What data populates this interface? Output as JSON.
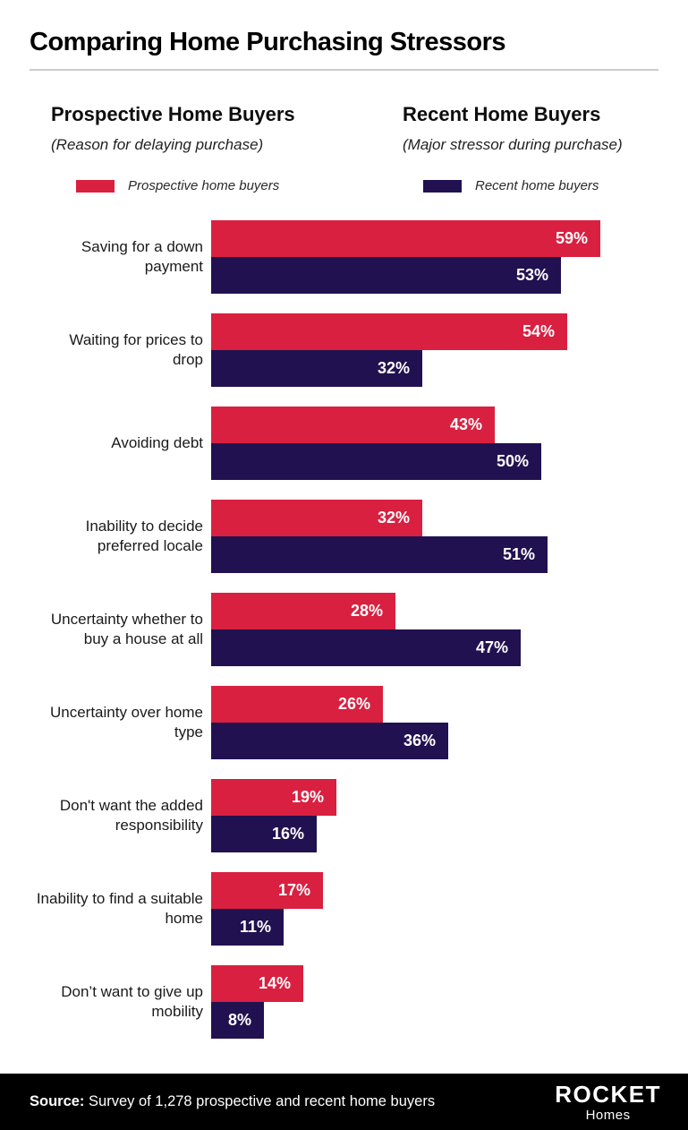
{
  "title": "Comparing Home Purchasing Stressors",
  "columns": {
    "left": {
      "heading": "Prospective Home Buyers",
      "subheading": "(Reason for delaying purchase)"
    },
    "right": {
      "heading": "Recent Home Buyers",
      "subheading": "(Major stressor during purchase)"
    }
  },
  "legend": {
    "prospective": {
      "label": "Prospective home buyers",
      "color": "#D92040"
    },
    "recent": {
      "label": "Recent home buyers",
      "color": "#221150"
    }
  },
  "chart_data": {
    "type": "bar",
    "orientation": "horizontal",
    "categories": [
      "Saving for a down payment",
      "Waiting for prices to drop",
      "Avoiding debt",
      "Inability to decide preferred locale",
      "Uncertainty whether to buy a house at all",
      "Uncertainty over home type",
      "Don't want the added responsibility",
      "Inability to find a suitable home",
      "Don’t want to give up mobility"
    ],
    "series": [
      {
        "name": "Prospective home buyers",
        "color": "#D92040",
        "values": [
          59,
          54,
          43,
          32,
          28,
          26,
          19,
          17,
          14
        ]
      },
      {
        "name": "Recent home buyers",
        "color": "#221150",
        "values": [
          53,
          32,
          50,
          51,
          47,
          36,
          16,
          11,
          8
        ]
      }
    ],
    "value_suffix": "%",
    "xlim": [
      0,
      72
    ],
    "grid": false,
    "legend_position": "top",
    "value_labels": "inside-end"
  },
  "footer": {
    "source_label": "Source:",
    "source_text": " Survey of 1,278 prospective and recent home buyers",
    "logo": {
      "line1": "ROCKET",
      "line2": "Homes"
    }
  }
}
